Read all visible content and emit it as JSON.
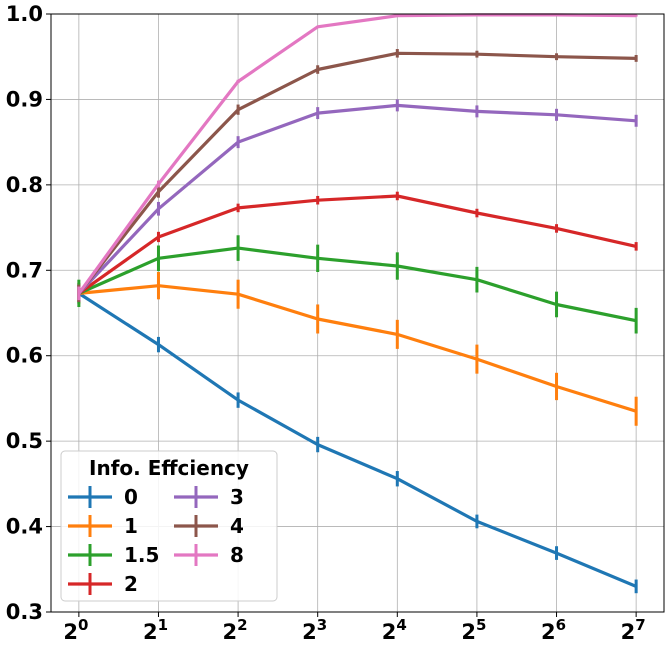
{
  "chart_data": {
    "type": "line",
    "x": [
      1,
      2,
      4,
      8,
      16,
      32,
      64,
      128
    ],
    "x_scale": "log2",
    "x_tick_base": "2",
    "x_tick_exponents": [
      "0",
      "1",
      "2",
      "3",
      "4",
      "5",
      "6",
      "7"
    ],
    "xlabel": "",
    "ylabel": "",
    "ylim": [
      0.3,
      1.0
    ],
    "y_ticks": [
      "0.3",
      "0.4",
      "0.5",
      "0.6",
      "0.7",
      "0.8",
      "0.9",
      "1.0"
    ],
    "grid": true,
    "legend": {
      "title": "Info. Effciency",
      "position": "lower-left",
      "columns": 2
    },
    "series": [
      {
        "name": "0",
        "color": "#1f77b4",
        "values": [
          0.673,
          0.613,
          0.548,
          0.496,
          0.456,
          0.406,
          0.369,
          0.33
        ],
        "errors": [
          0.012,
          0.009,
          0.009,
          0.009,
          0.009,
          0.008,
          0.008,
          0.008
        ]
      },
      {
        "name": "1",
        "color": "#ff7f0e",
        "values": [
          0.673,
          0.682,
          0.672,
          0.643,
          0.625,
          0.596,
          0.564,
          0.535
        ],
        "errors": [
          0.012,
          0.016,
          0.017,
          0.017,
          0.017,
          0.017,
          0.016,
          0.017
        ]
      },
      {
        "name": "1.5",
        "color": "#2ca02c",
        "values": [
          0.673,
          0.714,
          0.726,
          0.714,
          0.705,
          0.689,
          0.66,
          0.641
        ],
        "errors": [
          0.016,
          0.015,
          0.015,
          0.016,
          0.016,
          0.015,
          0.015,
          0.015
        ]
      },
      {
        "name": "2",
        "color": "#d62728",
        "values": [
          0.673,
          0.739,
          0.773,
          0.782,
          0.787,
          0.767,
          0.749,
          0.728
        ],
        "errors": [
          0.01,
          0.006,
          0.005,
          0.005,
          0.005,
          0.005,
          0.005,
          0.005
        ]
      },
      {
        "name": "3",
        "color": "#9467bd",
        "values": [
          0.673,
          0.772,
          0.85,
          0.884,
          0.893,
          0.886,
          0.882,
          0.875
        ],
        "errors": [
          0.01,
          0.008,
          0.007,
          0.007,
          0.007,
          0.007,
          0.007,
          0.007
        ]
      },
      {
        "name": "4",
        "color": "#8c564b",
        "values": [
          0.673,
          0.792,
          0.888,
          0.935,
          0.954,
          0.953,
          0.95,
          0.948
        ],
        "errors": [
          0.01,
          0.007,
          0.006,
          0.005,
          0.005,
          0.004,
          0.004,
          0.004
        ]
      },
      {
        "name": "8",
        "color": "#e377c2",
        "values": [
          0.673,
          0.801,
          0.921,
          0.985,
          0.998,
          0.999,
          0.999,
          0.998
        ],
        "errors": [
          0.008,
          0.004,
          0.002,
          0.001,
          0.001,
          0.001,
          0.001,
          0.001
        ]
      }
    ]
  }
}
